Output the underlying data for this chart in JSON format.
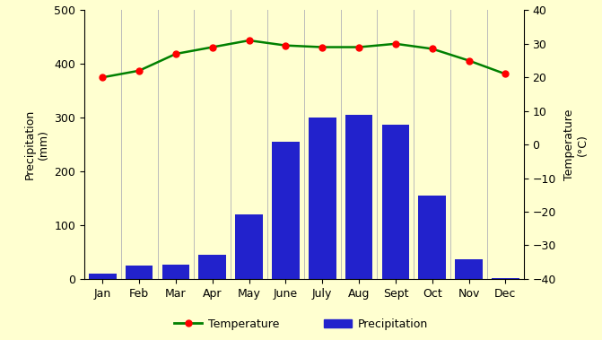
{
  "months": [
    "Jan",
    "Feb",
    "Mar",
    "Apr",
    "May",
    "June",
    "July",
    "Aug",
    "Sept",
    "Oct",
    "Nov",
    "Dec"
  ],
  "precipitation": [
    10,
    25,
    27,
    45,
    120,
    255,
    300,
    305,
    287,
    155,
    37,
    2
  ],
  "temperature": [
    20,
    22,
    27,
    29,
    31,
    29.5,
    29,
    29,
    30,
    28.5,
    25,
    21
  ],
  "bar_color": "#2222cc",
  "line_color": "#008000",
  "marker_color": "#ff0000",
  "background_color": "#ffffd0",
  "precip_ylim": [
    0,
    500
  ],
  "temp_ylim": [
    -40,
    40
  ],
  "precip_yticks": [
    0,
    100,
    200,
    300,
    400,
    500
  ],
  "temp_yticks": [
    -40,
    -30,
    -20,
    -10,
    0,
    10,
    20,
    30,
    40
  ],
  "ylabel_left": "Precipitation\n(mm)",
  "ylabel_right": "Temperature\n(°C)",
  "legend_temp": "Temperature",
  "legend_precip": "Precipitation",
  "vline_color": "#bbbbbb",
  "title": ""
}
